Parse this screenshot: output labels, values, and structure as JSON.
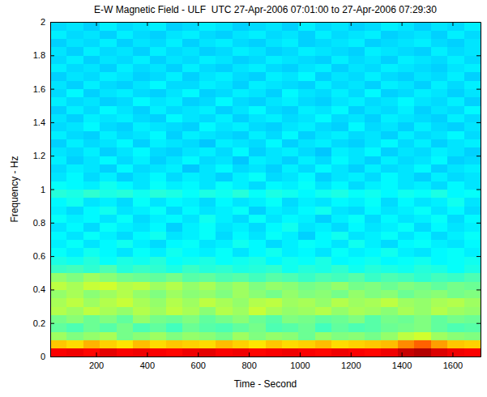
{
  "chart_data": {
    "type": "heatmap",
    "title": "E-W Magnetic Field - ULF  UTC 27-Apr-2006 07:01:00 to 27-Apr-2006 07:29:30",
    "xlabel": "Time - Second",
    "ylabel": "Frequency - Hz",
    "xlim": [
      20,
      1710
    ],
    "ylim": [
      0,
      2
    ],
    "xticks": [
      200,
      400,
      600,
      800,
      1000,
      1200,
      1400,
      1600
    ],
    "yticks": [
      0,
      0.2,
      0.4,
      0.6,
      0.8,
      1,
      1.2,
      1.4,
      1.6,
      1.8,
      2
    ],
    "grid": false,
    "zlim": [
      0,
      10
    ],
    "x_edges": [
      20,
      85,
      150,
      215,
      280,
      345,
      410,
      475,
      540,
      605,
      670,
      735,
      800,
      865,
      930,
      995,
      1060,
      1125,
      1190,
      1255,
      1320,
      1385,
      1450,
      1515,
      1580,
      1645,
      1710
    ],
    "y_edges": [
      0,
      0.05,
      0.1,
      0.15,
      0.2,
      0.25,
      0.3,
      0.35,
      0.4,
      0.45,
      0.5,
      0.55,
      0.6,
      0.65,
      0.7,
      0.75,
      0.8,
      0.85,
      0.9,
      0.95,
      1,
      1.05,
      1.1,
      1.15,
      1.2,
      1.25,
      1.3,
      1.35,
      1.4,
      1.45,
      1.5,
      1.55,
      1.6,
      1.65,
      1.7,
      1.75,
      1.8,
      1.85,
      1.9,
      1.95,
      2
    ],
    "z": [
      [
        8.8,
        8.9,
        8.7,
        9.0,
        8.8,
        8.9,
        8.8,
        8.7,
        8.9,
        9.0,
        8.8,
        8.9,
        8.7,
        8.8,
        8.9,
        8.8,
        8.7,
        8.9,
        8.8,
        8.7,
        8.9,
        9.3,
        9.5,
        9.1,
        8.9,
        8.8
      ],
      [
        6.8,
        6.6,
        7.0,
        6.7,
        6.5,
        6.9,
        6.6,
        6.8,
        6.7,
        6.6,
        6.9,
        6.7,
        6.5,
        6.8,
        6.6,
        6.7,
        6.9,
        6.6,
        6.7,
        6.8,
        6.9,
        7.4,
        7.8,
        7.2,
        6.8,
        6.7
      ],
      [
        5.3,
        5.0,
        5.2,
        5.4,
        4.9,
        5.1,
        5.3,
        5.0,
        5.2,
        5.1,
        4.9,
        5.3,
        5.0,
        5.2,
        5.1,
        4.8,
        5.2,
        5.0,
        5.1,
        4.9,
        5.2,
        5.6,
        5.8,
        5.3,
        5.1,
        5.0
      ],
      [
        4.7,
        4.5,
        4.8,
        4.6,
        4.9,
        4.5,
        4.7,
        4.4,
        4.8,
        4.6,
        4.5,
        4.7,
        4.9,
        4.5,
        4.6,
        4.8,
        4.4,
        4.7,
        4.5,
        4.6,
        4.8,
        4.9,
        5.0,
        4.7,
        4.5,
        4.6
      ],
      [
        4.9,
        5.1,
        4.8,
        5.0,
        4.7,
        5.2,
        4.9,
        4.8,
        5.0,
        4.7,
        4.9,
        5.1,
        4.8,
        4.6,
        5.0,
        4.9,
        4.7,
        4.8,
        5.0,
        4.6,
        4.9,
        4.8,
        5.0,
        4.7,
        4.9,
        4.8
      ],
      [
        5.5,
        5.3,
        5.6,
        5.4,
        5.2,
        5.5,
        5.3,
        5.6,
        5.4,
        5.1,
        5.5,
        5.3,
        5.7,
        5.4,
        5.2,
        5.3,
        5.5,
        5.2,
        5.4,
        5.3,
        5.1,
        5.4,
        5.2,
        5.5,
        5.3,
        5.2
      ],
      [
        5.4,
        5.6,
        5.3,
        5.5,
        5.7,
        5.4,
        5.2,
        5.5,
        5.3,
        5.6,
        5.4,
        5.2,
        5.5,
        5.6,
        5.3,
        5.4,
        5.2,
        5.5,
        5.3,
        5.4,
        5.6,
        5.3,
        5.2,
        5.4,
        5.5,
        5.3
      ],
      [
        5.2,
        5.4,
        5.1,
        5.3,
        5.5,
        5.2,
        5.0,
        5.3,
        5.1,
        5.2,
        5.0,
        5.3,
        5.1,
        4.9,
        5.2,
        5.0,
        5.1,
        4.9,
        5.2,
        5.0,
        5.1,
        4.8,
        5.0,
        5.1,
        4.9,
        5.0
      ],
      [
        5.6,
        5.4,
        5.7,
        5.8,
        5.5,
        5.6,
        5.3,
        5.5,
        5.2,
        5.4,
        5.1,
        5.3,
        5.0,
        5.2,
        5.1,
        4.9,
        5.0,
        5.2,
        4.9,
        5.0,
        4.8,
        5.0,
        4.9,
        4.7,
        4.9,
        4.8
      ],
      [
        5.2,
        5.0,
        5.3,
        5.1,
        4.9,
        4.8,
        4.7,
        4.9,
        4.6,
        4.7,
        4.5,
        4.6,
        4.4,
        4.6,
        4.5,
        4.3,
        4.5,
        4.4,
        4.6,
        4.3,
        4.5,
        4.4,
        4.2,
        4.4,
        4.3,
        4.5
      ],
      [
        4.3,
        4.4,
        4.2,
        4.5,
        4.1,
        4.3,
        4.2,
        4.0,
        4.3,
        4.1,
        4.2,
        4.0,
        4.1,
        4.2,
        3.9,
        4.1,
        4.0,
        4.2,
        3.9,
        4.1,
        4.0,
        3.9,
        4.1,
        4.0,
        3.8,
        4.0
      ],
      [
        4.0,
        3.9,
        4.1,
        3.8,
        4.0,
        3.9,
        4.1,
        3.8,
        3.9,
        4.0,
        3.8,
        3.9,
        4.0,
        3.7,
        3.9,
        3.8,
        4.0,
        3.7,
        3.8,
        3.9,
        3.7,
        3.8,
        3.9,
        3.7,
        3.8,
        3.9
      ],
      [
        3.8,
        3.6,
        3.9,
        3.7,
        3.5,
        3.8,
        3.6,
        3.9,
        3.7,
        3.6,
        3.8,
        3.5,
        3.7,
        3.9,
        3.6,
        3.7,
        3.5,
        3.8,
        3.6,
        3.7,
        3.9,
        3.6,
        3.5,
        3.7,
        3.8,
        3.6
      ],
      [
        3.6,
        3.8,
        3.5,
        3.7,
        3.9,
        3.6,
        3.4,
        3.7,
        3.8,
        3.5,
        3.6,
        3.9,
        3.7,
        3.4,
        3.6,
        3.8,
        3.7,
        3.5,
        3.9,
        3.6,
        3.4,
        3.7,
        3.8,
        3.6,
        3.5,
        3.7
      ],
      [
        3.7,
        3.5,
        3.8,
        3.6,
        3.4,
        3.7,
        3.9,
        3.5,
        3.6,
        3.8,
        3.4,
        3.7,
        3.5,
        3.8,
        3.6,
        3.3,
        3.7,
        3.9,
        3.5,
        3.6,
        3.8,
        3.5,
        3.7,
        3.4,
        3.6,
        3.8
      ],
      [
        3.5,
        3.7,
        3.4,
        3.8,
        3.6,
        3.5,
        3.7,
        3.3,
        3.6,
        3.8,
        3.5,
        3.6,
        3.4,
        3.7,
        3.9,
        3.5,
        3.6,
        3.4,
        3.7,
        3.5,
        3.6,
        3.8,
        3.4,
        3.7,
        3.5,
        3.6
      ],
      [
        3.8,
        3.6,
        3.7,
        3.5,
        3.8,
        3.4,
        3.6,
        3.7,
        3.5,
        3.9,
        3.6,
        3.4,
        3.8,
        3.5,
        3.7,
        3.6,
        3.3,
        3.6,
        3.8,
        3.4,
        3.7,
        3.5,
        3.6,
        3.8,
        3.4,
        3.7
      ],
      [
        3.6,
        3.4,
        3.7,
        3.9,
        3.5,
        3.6,
        3.8,
        3.4,
        3.7,
        3.5,
        3.6,
        3.8,
        3.3,
        3.6,
        3.5,
        3.7,
        3.9,
        3.5,
        3.4,
        3.7,
        3.5,
        3.6,
        3.8,
        3.5,
        3.7,
        3.4
      ],
      [
        3.7,
        3.9,
        3.5,
        3.6,
        3.4,
        3.8,
        3.5,
        3.7,
        3.6,
        3.4,
        3.7,
        3.5,
        3.6,
        3.8,
        3.4,
        3.6,
        3.5,
        3.7,
        3.6,
        3.8,
        3.4,
        3.7,
        3.5,
        3.6,
        3.9,
        3.5
      ],
      [
        4.1,
        4.0,
        4.2,
        4.0,
        4.1,
        3.9,
        4.1,
        4.0,
        3.8,
        4.0,
        3.9,
        4.1,
        3.8,
        4.0,
        3.9,
        3.7,
        3.9,
        4.0,
        3.8,
        3.9,
        3.7,
        3.9,
        3.8,
        4.0,
        3.7,
        3.8
      ],
      [
        3.8,
        3.7,
        3.6,
        3.9,
        3.7,
        3.5,
        3.8,
        3.6,
        3.7,
        3.5,
        3.8,
        3.6,
        3.4,
        3.7,
        3.6,
        3.8,
        3.5,
        3.7,
        3.4,
        3.6,
        3.7,
        3.5,
        3.6,
        3.4,
        3.7,
        3.5
      ],
      [
        3.5,
        3.7,
        3.4,
        3.6,
        3.3,
        3.5,
        3.7,
        3.4,
        3.6,
        3.5,
        3.3,
        3.6,
        3.8,
        3.4,
        3.5,
        3.7,
        3.3,
        3.5,
        3.6,
        3.4,
        3.7,
        3.5,
        3.3,
        3.6,
        3.4,
        3.5
      ],
      [
        3.4,
        3.6,
        3.5,
        3.3,
        3.7,
        3.4,
        3.5,
        3.6,
        3.2,
        3.5,
        3.7,
        3.4,
        3.5,
        3.3,
        3.6,
        3.4,
        3.7,
        3.5,
        3.3,
        3.6,
        3.4,
        3.5,
        3.7,
        3.3,
        3.5,
        3.6
      ],
      [
        3.6,
        3.3,
        3.5,
        3.7,
        3.4,
        3.6,
        3.3,
        3.5,
        3.7,
        3.4,
        3.5,
        3.2,
        3.6,
        3.5,
        3.3,
        3.6,
        3.4,
        3.7,
        3.5,
        3.3,
        3.6,
        3.4,
        3.5,
        3.7,
        3.3,
        3.4
      ],
      [
        3.5,
        3.4,
        3.6,
        3.3,
        3.5,
        3.7,
        3.4,
        3.3,
        3.5,
        3.6,
        3.4,
        3.7,
        3.3,
        3.5,
        3.6,
        3.4,
        3.2,
        3.6,
        3.5,
        3.7,
        3.3,
        3.5,
        3.4,
        3.6,
        3.5,
        3.3
      ],
      [
        3.3,
        3.6,
        3.4,
        3.5,
        3.7,
        3.3,
        3.6,
        3.5,
        3.4,
        3.2,
        3.6,
        3.5,
        3.4,
        3.7,
        3.3,
        3.5,
        3.6,
        3.4,
        3.3,
        3.5,
        3.7,
        3.4,
        3.6,
        3.3,
        3.5,
        3.6
      ],
      [
        3.6,
        3.4,
        3.3,
        3.6,
        3.4,
        3.5,
        3.7,
        3.3,
        3.6,
        3.5,
        3.4,
        3.3,
        3.6,
        3.4,
        3.7,
        3.3,
        3.5,
        3.6,
        3.4,
        3.5,
        3.3,
        3.6,
        3.4,
        3.5,
        3.7,
        3.4
      ],
      [
        3.4,
        3.5,
        3.7,
        3.4,
        3.3,
        3.6,
        3.5,
        3.4,
        3.3,
        3.7,
        3.5,
        3.6,
        3.4,
        3.3,
        3.5,
        3.6,
        3.4,
        3.3,
        3.7,
        3.4,
        3.5,
        3.3,
        3.6,
        3.4,
        3.3,
        3.5
      ],
      [
        3.5,
        3.3,
        3.6,
        3.5,
        3.6,
        3.4,
        3.3,
        3.7,
        3.5,
        3.4,
        3.6,
        3.3,
        3.5,
        3.6,
        3.4,
        3.5,
        3.7,
        3.4,
        3.5,
        3.3,
        3.6,
        3.5,
        3.4,
        3.3,
        3.6,
        3.4
      ],
      [
        3.3,
        3.6,
        3.4,
        3.7,
        3.5,
        3.3,
        3.6,
        3.4,
        3.5,
        3.6,
        3.3,
        3.5,
        3.7,
        3.4,
        3.3,
        3.6,
        3.5,
        3.7,
        3.3,
        3.5,
        3.4,
        3.6,
        3.3,
        3.5,
        3.4,
        3.7
      ],
      [
        3.6,
        3.4,
        3.5,
        3.3,
        3.4,
        3.7,
        3.5,
        3.6,
        3.3,
        3.4,
        3.7,
        3.4,
        3.3,
        3.5,
        3.6,
        3.4,
        3.3,
        3.5,
        3.6,
        3.4,
        3.5,
        3.7,
        3.5,
        3.4,
        3.6,
        3.3
      ],
      [
        3.4,
        3.7,
        3.3,
        3.5,
        3.6,
        3.4,
        3.3,
        3.5,
        3.7,
        3.3,
        3.4,
        3.6,
        3.5,
        3.3,
        3.7,
        3.5,
        3.4,
        3.6,
        3.4,
        3.7,
        3.3,
        3.4,
        3.6,
        3.5,
        3.3,
        3.5
      ],
      [
        3.5,
        3.3,
        3.6,
        3.4,
        3.3,
        3.5,
        3.7,
        3.4,
        3.4,
        3.6,
        3.5,
        3.3,
        3.6,
        3.5,
        3.4,
        3.3,
        3.6,
        3.4,
        3.5,
        3.3,
        3.6,
        3.5,
        3.3,
        3.6,
        3.4,
        3.6
      ],
      [
        3.3,
        3.5,
        3.4,
        3.6,
        3.5,
        3.3,
        3.4,
        3.6,
        3.3,
        3.5,
        3.6,
        3.4,
        3.3,
        3.6,
        3.5,
        3.7,
        3.3,
        3.5,
        3.4,
        3.6,
        3.4,
        3.3,
        3.5,
        3.4,
        3.6,
        3.3
      ],
      [
        3.6,
        3.4,
        3.5,
        3.3,
        3.6,
        3.4,
        3.5,
        3.3,
        3.6,
        3.4,
        3.3,
        3.5,
        3.6,
        3.4,
        3.3,
        3.5,
        3.6,
        3.3,
        3.5,
        3.4,
        3.6,
        3.5,
        3.4,
        3.3,
        3.5,
        3.6
      ],
      [
        3.4,
        3.6,
        3.3,
        3.5,
        3.4,
        3.6,
        3.3,
        3.5,
        3.4,
        3.6,
        3.5,
        3.3,
        3.4,
        3.6,
        3.5,
        3.4,
        3.3,
        3.6,
        3.4,
        3.5,
        3.3,
        3.6,
        3.5,
        3.4,
        3.6,
        3.4
      ],
      [
        3.5,
        3.3,
        3.6,
        3.4,
        3.5,
        3.3,
        3.6,
        3.4,
        3.5,
        3.3,
        3.4,
        3.6,
        3.5,
        3.3,
        3.4,
        3.6,
        3.5,
        3.4,
        3.3,
        3.6,
        3.5,
        3.4,
        3.3,
        3.6,
        3.4,
        3.5
      ],
      [
        3.3,
        3.5,
        3.4,
        3.6,
        3.3,
        3.5,
        3.4,
        3.6,
        3.3,
        3.5,
        3.6,
        3.4,
        3.3,
        3.5,
        3.6,
        3.3,
        3.4,
        3.5,
        3.6,
        3.3,
        3.4,
        3.5,
        3.6,
        3.4,
        3.3,
        3.5
      ],
      [
        3.6,
        3.4,
        3.5,
        3.3,
        3.6,
        3.4,
        3.3,
        3.5,
        3.6,
        3.4,
        3.3,
        3.5,
        3.6,
        3.4,
        3.5,
        3.3,
        3.6,
        3.4,
        3.5,
        3.6,
        3.3,
        3.4,
        3.5,
        3.3,
        3.6,
        3.4
      ],
      [
        3.4,
        3.5,
        3.3,
        3.6,
        3.4,
        3.5,
        3.6,
        3.3,
        3.4,
        3.6,
        3.5,
        3.3,
        3.4,
        3.5,
        3.3,
        3.6,
        3.4,
        3.5,
        3.3,
        3.4,
        3.6,
        3.5,
        3.3,
        3.5,
        3.4,
        3.6
      ]
    ]
  }
}
